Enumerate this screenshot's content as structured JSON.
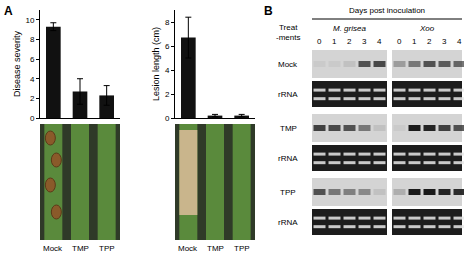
{
  "panel_labels": [
    "A",
    "B"
  ],
  "chart_data": [
    {
      "type": "bar",
      "categories": [
        "Mock",
        "TMP",
        "TPP"
      ],
      "values": [
        9.3,
        2.7,
        2.3
      ],
      "errors": [
        0.4,
        1.3,
        1.0
      ],
      "y_label": "Disease severity",
      "ylim": [
        0,
        11
      ],
      "yticks": [
        0,
        2,
        4,
        6,
        8,
        10
      ],
      "color": "#111111",
      "grid": false
    },
    {
      "type": "bar",
      "categories": [
        "Mock",
        "TMP",
        "TPP"
      ],
      "values": [
        6.7,
        0.2,
        0.2
      ],
      "errors": [
        1.7,
        0.1,
        0.1
      ],
      "y_label": "Lesion length (cm)",
      "ylim": [
        0,
        9
      ],
      "yticks": [
        0,
        2,
        4,
        6,
        8
      ],
      "color": "#111111",
      "grid": false
    }
  ],
  "blot": {
    "header": "Days post inoculation",
    "row_header": [
      "Treat",
      "-ments"
    ],
    "pathogens": [
      "M. grisea",
      "Xoo"
    ],
    "days": [
      0,
      1,
      2,
      3,
      4
    ],
    "rows": [
      {
        "label": "Mock",
        "signal": [
          [
            0.05,
            0.05,
            0.1,
            0.7,
            0.75
          ],
          [
            0.3,
            0.5,
            0.7,
            0.65,
            0.6
          ]
        ]
      },
      {
        "label": "rRNA"
      },
      {
        "label": "TMP",
        "signal": [
          [
            0.8,
            0.75,
            0.7,
            0.5,
            0.1
          ],
          [
            0.05,
            1,
            0.95,
            0.8,
            0.7
          ]
        ]
      },
      {
        "label": "rRNA"
      },
      {
        "label": "TPP",
        "signal": [
          [
            0.7,
            0.5,
            0.45,
            0.4,
            0.1
          ],
          [
            0.2,
            1,
            1,
            0.95,
            0.9
          ]
        ]
      },
      {
        "label": "rRNA"
      }
    ]
  }
}
